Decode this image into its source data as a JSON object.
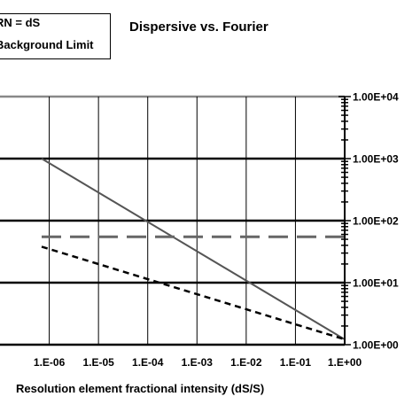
{
  "chart_data": {
    "type": "line",
    "title": "Dispersive vs. Fourier",
    "xlabel": "Resolution element fractional intensity (dS/S)",
    "ylabel": "",
    "x_scale": "log",
    "y_scale": "log",
    "xlim": [
      1e-07,
      1
    ],
    "ylim": [
      1,
      10000
    ],
    "x_tick_labels": [
      "1.E-05",
      "1.E-04",
      "1.E-03",
      "1.E-02",
      "1.E-01",
      "1.E+00"
    ],
    "y_tick_labels": [
      "1.00E+00",
      "1.00E+01",
      "1.00E+02",
      "1.00E+03",
      "1.00E+04"
    ],
    "grid": "horizontal",
    "legend": [
      "RN = dS",
      "Background Limit"
    ],
    "series": [
      {
        "x": [
          7e-07,
          1
        ],
        "y": [
          1000,
          1.22
        ],
        "color": "#555555",
        "dash": "solid"
      },
      {
        "x": [
          7e-07,
          1
        ],
        "y": [
          38,
          1.22
        ],
        "color": "#000000",
        "dash": "short"
      },
      {
        "x": [
          7e-07,
          1
        ],
        "y": [
          55,
          55
        ],
        "color": "#666666",
        "dash": "long"
      }
    ]
  }
}
